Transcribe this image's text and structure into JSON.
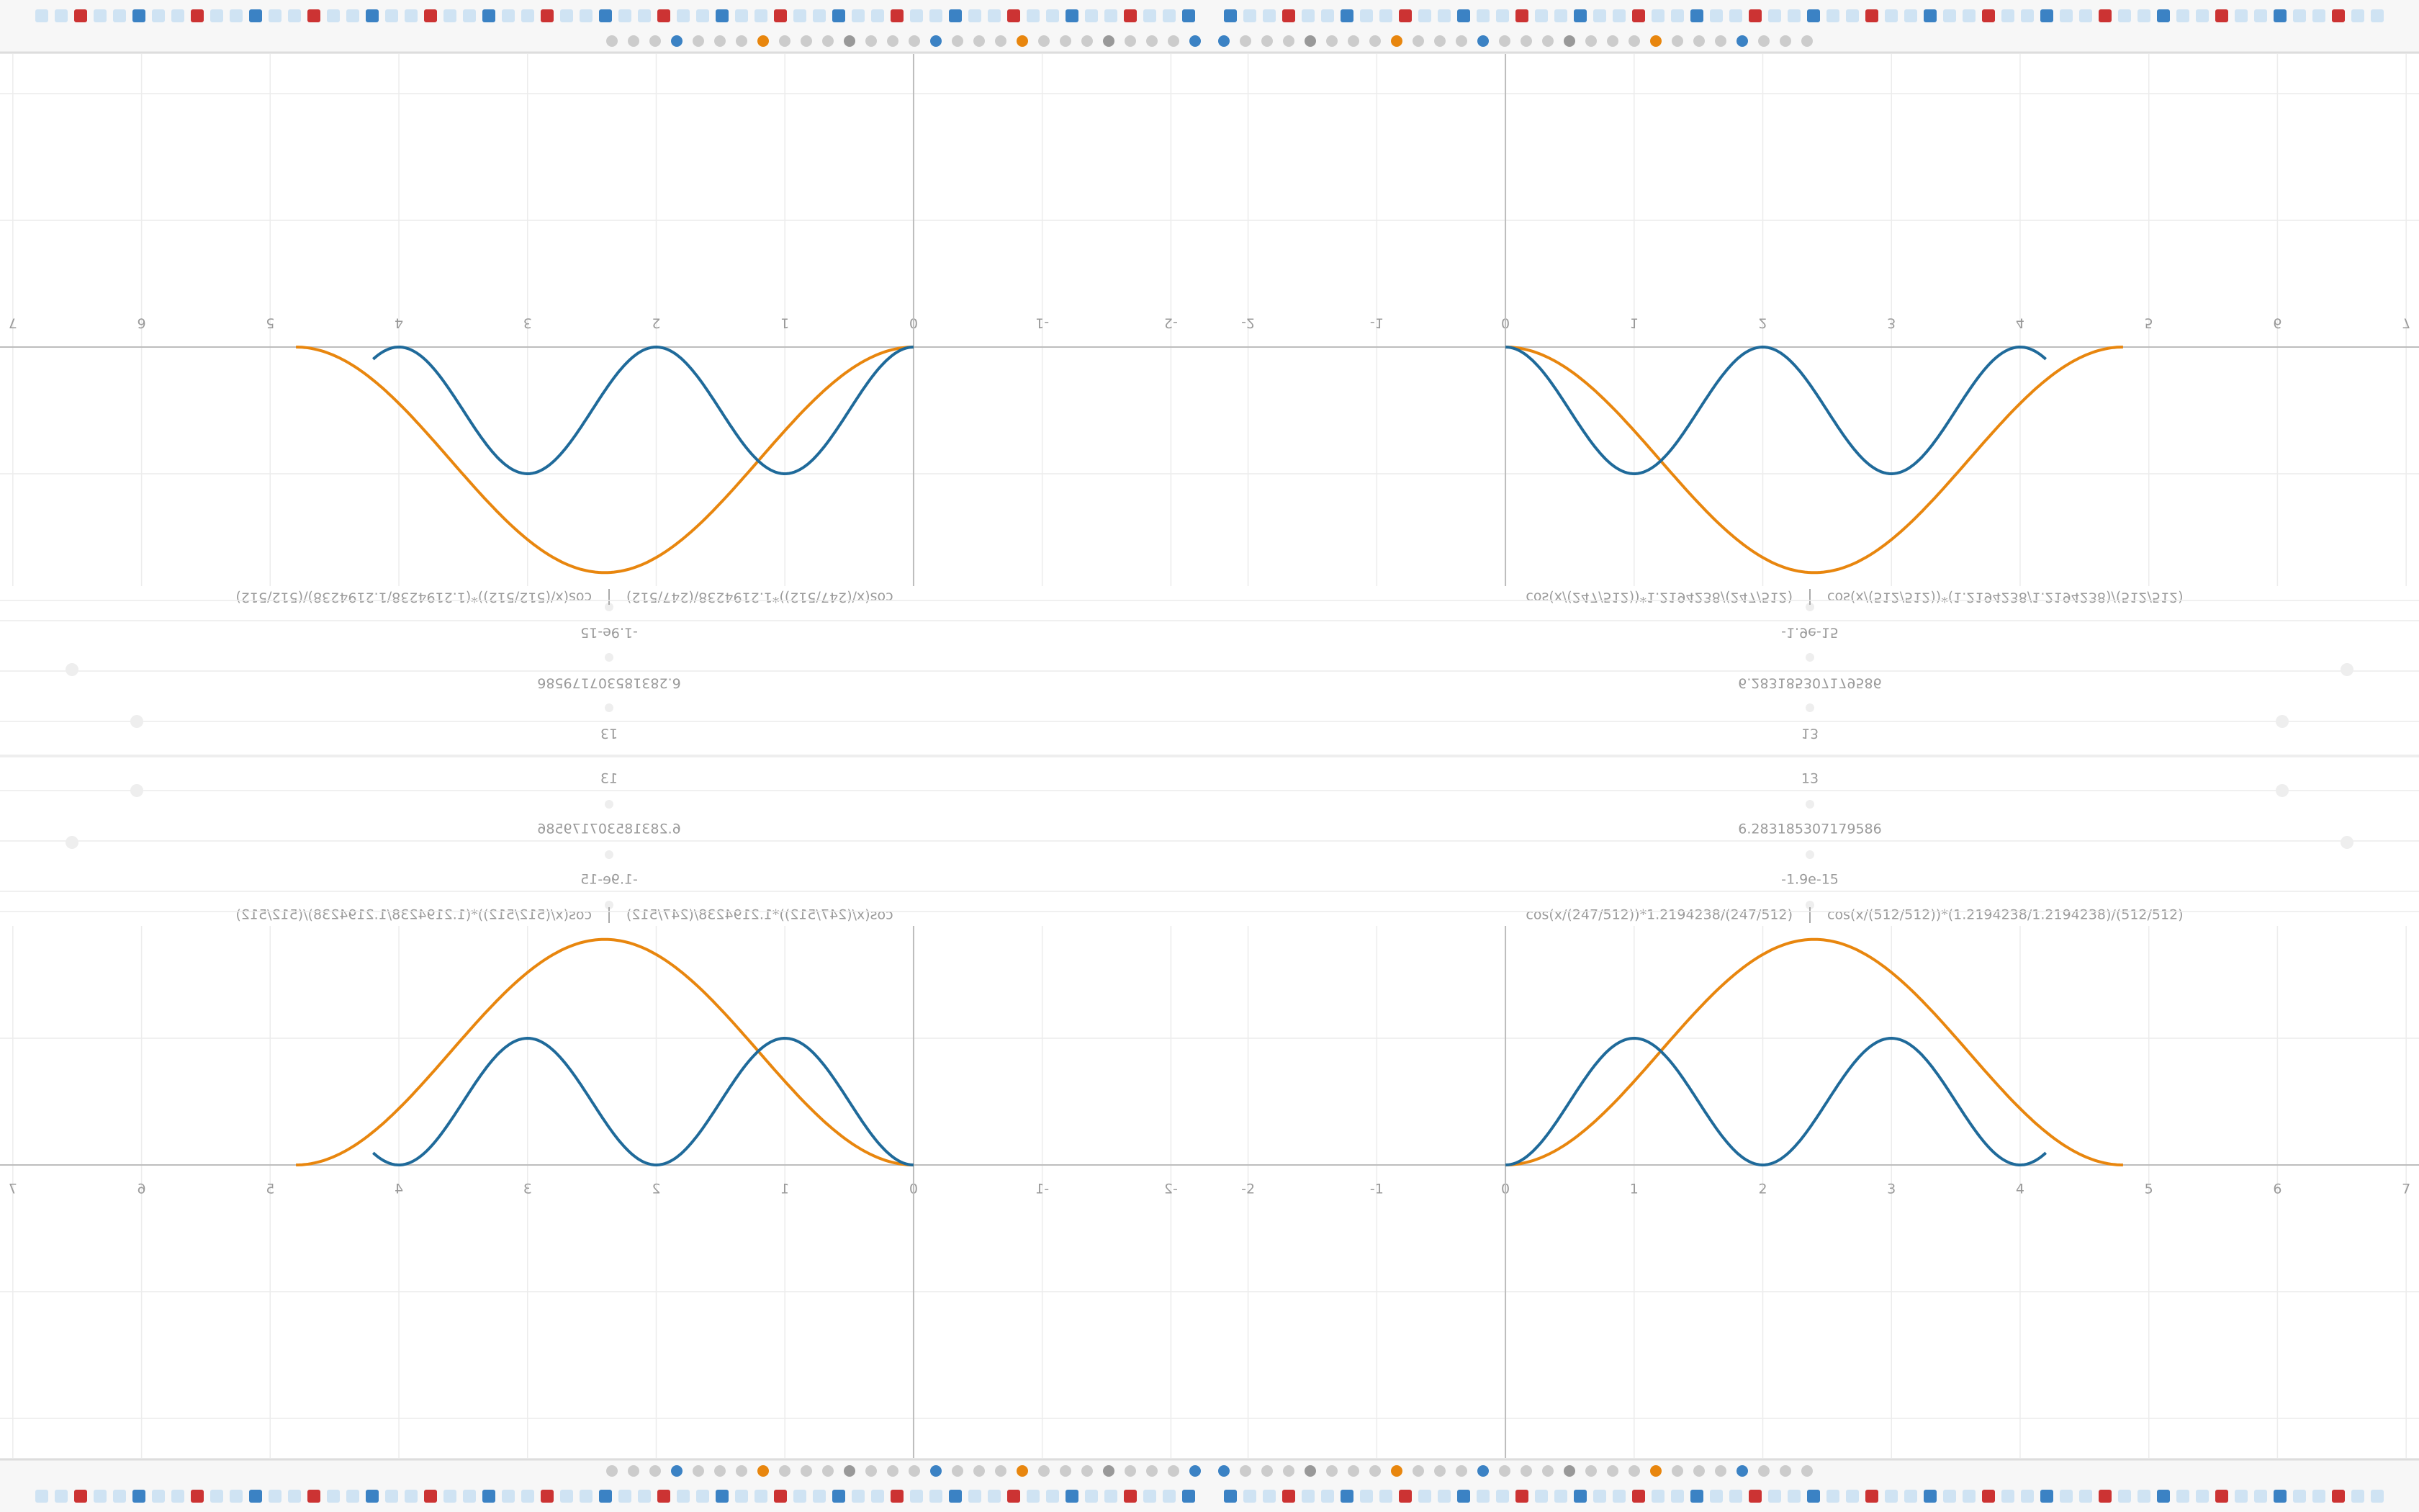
{
  "expressions": [
    "cos(x/(247/512))*1.2194238/(247/512)",
    "cos(x/(512/512))*(1.2194238/1.2194238)/(512/512)"
  ],
  "results": [
    "13",
    "6.283185307179586",
    "-1.9e-15"
  ],
  "graph": {
    "xticks": [
      -2,
      -1,
      0,
      1,
      2,
      3,
      4,
      5,
      6,
      7
    ],
    "xlim": [
      -2.3,
      7.1
    ]
  }
}
